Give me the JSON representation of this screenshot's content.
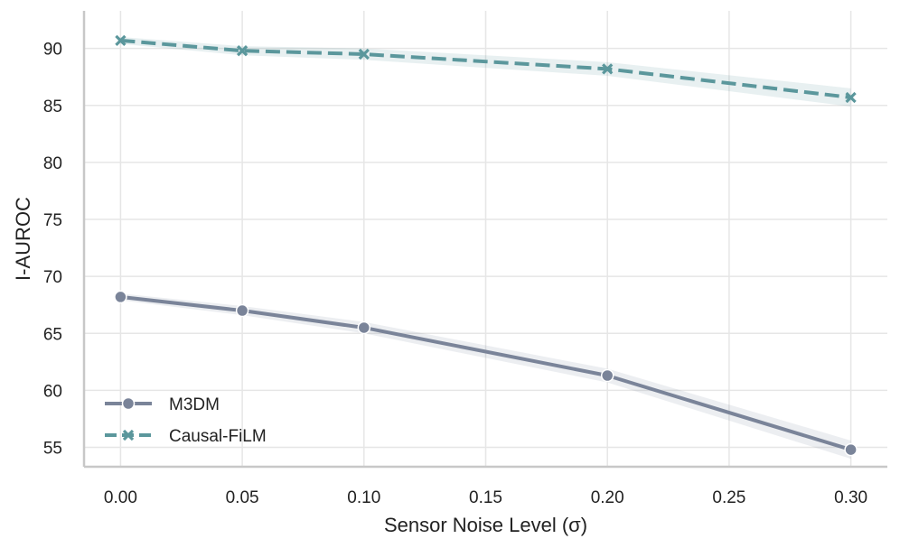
{
  "chart_data": {
    "type": "line",
    "title": "",
    "xlabel": "Sensor Noise Level (σ)",
    "ylabel": "I-AUROC",
    "x": [
      0.0,
      0.05,
      0.1,
      0.2,
      0.3
    ],
    "xlim": [
      -0.015,
      0.315
    ],
    "ylim": [
      53.3,
      93.3
    ],
    "xticks": [
      0.0,
      0.05,
      0.1,
      0.15,
      0.2,
      0.25,
      0.3
    ],
    "xtick_labels": [
      "0.00",
      "0.05",
      "0.10",
      "0.15",
      "0.20",
      "0.25",
      "0.30"
    ],
    "yticks": [
      55,
      60,
      65,
      70,
      75,
      80,
      85,
      90
    ],
    "ytick_labels": [
      "55",
      "60",
      "65",
      "70",
      "75",
      "80",
      "85",
      "90"
    ],
    "grid": true,
    "legend_position": "lower-left",
    "series": [
      {
        "name": "M3DM",
        "values": [
          68.2,
          67.0,
          65.5,
          61.3,
          54.8
        ],
        "band": [
          0.3,
          0.4,
          0.5,
          0.6,
          0.8
        ],
        "color": "#7a8499",
        "marker": "circle",
        "linestyle": "solid"
      },
      {
        "name": "Causal-FiLM",
        "values": [
          90.7,
          89.8,
          89.5,
          88.2,
          85.7
        ],
        "band": [
          0.3,
          0.4,
          0.5,
          0.6,
          0.8
        ],
        "color": "#5b979c",
        "marker": "x",
        "linestyle": "dashed"
      }
    ]
  }
}
